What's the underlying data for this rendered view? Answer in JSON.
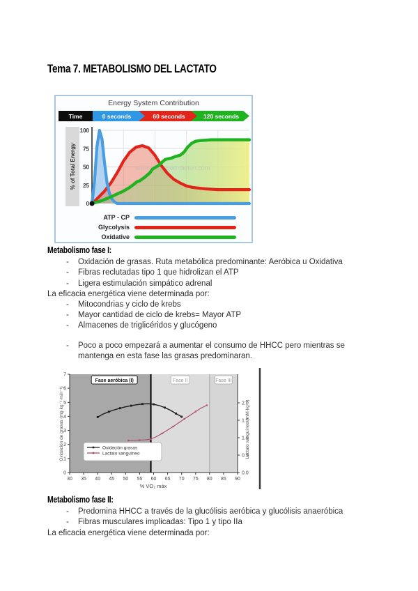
{
  "page_title": "Tema 7. METABOLISMO DEL LACTATO",
  "sections": {
    "fase1": {
      "heading": "Metabolismo fase I:",
      "bullets_a": [
        "Oxidación de grasas. Ruta metabólica predominante: Aeróbica u Oxidativa",
        "Fibras reclutadas tipo 1 que hidrolizan el ATP",
        "Ligera estimulación simpático adrenal"
      ],
      "efficiency_line": "La eficacia energética viene determinada por:",
      "bullets_b": [
        "Mitocondrias y ciclo de krebs",
        "Mayor cantidad de ciclo de krebs= Mayor ATP",
        "Almacenes de triglicéridos y glucógeno"
      ],
      "bullets_c": [
        "Poco a poco empezará a aumentar el consumo de HHCC pero mientras se mantenga en esta fase las grasas predominaran."
      ]
    },
    "fase2": {
      "heading": "Metabolismo fase II:",
      "bullets_a": [
        "Predomina HHCC a través de la glucólisis aeróbica y glucólisis anaeróbica",
        "Fibras musculares implicadas: Tipo 1 y tipo IIa"
      ],
      "efficiency_line": "La eficacia energética viene determinada por:"
    }
  },
  "chart_data": [
    {
      "id": "energy-system-contribution",
      "type": "area",
      "title": "Energy System Contribution",
      "time_bar": {
        "label": "Time",
        "segments": [
          {
            "label": "0 seconds",
            "color": "#2f97e3"
          },
          {
            "label": "60 seconds",
            "color": "#e1251b"
          },
          {
            "label": "120 seconds",
            "color": "#1fb41f"
          }
        ]
      },
      "ylabel": "% of Total Energy",
      "yticks": [
        100,
        75,
        50,
        25,
        0
      ],
      "x_unit": "seconds",
      "x_max": 125,
      "series": [
        {
          "name": "ATP - CP",
          "color": "#4a9de0",
          "fill": "#aacfee",
          "x": [
            0,
            2,
            4,
            6,
            8,
            10,
            12,
            14,
            16,
            18,
            20,
            125
          ],
          "values": [
            0,
            30,
            78,
            100,
            88,
            55,
            28,
            13,
            6,
            2,
            0,
            0
          ]
        },
        {
          "name": "Glycolysis",
          "color": "#e1251b",
          "fill": "#e87a60",
          "x": [
            0,
            5,
            10,
            15,
            20,
            25,
            30,
            35,
            40,
            45,
            50,
            55,
            60,
            65,
            70,
            75,
            80,
            90,
            100,
            125
          ],
          "values": [
            0,
            8,
            17,
            28,
            42,
            58,
            70,
            77,
            79,
            76,
            66,
            52,
            41,
            33,
            28,
            24,
            22,
            20,
            19,
            19
          ]
        },
        {
          "name": "Oxidative",
          "color": "#21b221",
          "fill": "gradient",
          "x": [
            0,
            8,
            15,
            20,
            25,
            30,
            33,
            36,
            38,
            42,
            46,
            48,
            50,
            53,
            56,
            58,
            60,
            63,
            66,
            68,
            70,
            73,
            76,
            79,
            82,
            86,
            95,
            125
          ],
          "values": [
            0,
            4,
            9,
            13,
            17,
            22,
            26,
            30,
            31,
            36,
            42,
            47,
            49,
            52,
            57,
            60,
            61,
            62,
            64,
            65,
            66,
            70,
            77,
            82,
            85,
            86,
            87,
            87
          ]
        }
      ],
      "legend": [
        "ATP - CP",
        "Glycolysis",
        "Oxidative"
      ],
      "watermark": "www.duursport-dieten.com"
    },
    {
      "id": "fases-metabolicas",
      "type": "line",
      "xlabel": "% VO₂ máx",
      "x_range": [
        30,
        90
      ],
      "xticks": [
        30,
        35,
        40,
        45,
        50,
        55,
        60,
        65,
        70,
        75,
        80,
        85,
        90
      ],
      "left_axis": {
        "label": "Oxidación de grasas (mg·kg⁻¹·min⁻¹)",
        "ticks": [
          7,
          6,
          5,
          4,
          3,
          2,
          1,
          0
        ],
        "range": [
          0,
          7
        ]
      },
      "right_axis": {
        "label": "Lactato sanguíneo (mM·kg⁻¹)",
        "ticks": [
          "2.0",
          "1.5",
          "1.0",
          "0.5",
          "0.0"
        ],
        "range": [
          0,
          2.25
        ]
      },
      "phases": [
        {
          "label": "Fase aeróbica (I)",
          "from": 30,
          "to": 59
        },
        {
          "label": "Fase II",
          "from": 59,
          "to": 80
        },
        {
          "label": "Fase III",
          "from": 80,
          "to": 90
        }
      ],
      "series": [
        {
          "name": "Oxidación grasas",
          "color": "#1a1a1a",
          "axis": "left",
          "x": [
            40,
            42,
            44,
            46,
            48,
            50,
            52,
            54,
            56,
            58,
            60,
            62,
            64,
            66,
            68,
            70
          ],
          "values": [
            3.95,
            4.17,
            4.33,
            4.47,
            4.58,
            4.68,
            4.76,
            4.83,
            4.88,
            4.9,
            4.86,
            4.77,
            4.62,
            4.44,
            4.2,
            3.97
          ]
        },
        {
          "name": "Lactato sanguíneo",
          "color": "#a84a63",
          "axis": "right",
          "x": [
            51,
            53,
            55,
            57,
            59,
            61,
            63,
            65,
            67,
            69,
            71,
            73,
            75,
            77,
            79
          ],
          "values": [
            0.92,
            0.92,
            0.93,
            0.94,
            0.96,
            1.03,
            1.12,
            1.22,
            1.32,
            1.43,
            1.54,
            1.64,
            1.75,
            1.85,
            1.93
          ]
        }
      ],
      "legend": [
        "Oxidación grasas",
        "Lactato sanguíneo"
      ]
    }
  ]
}
